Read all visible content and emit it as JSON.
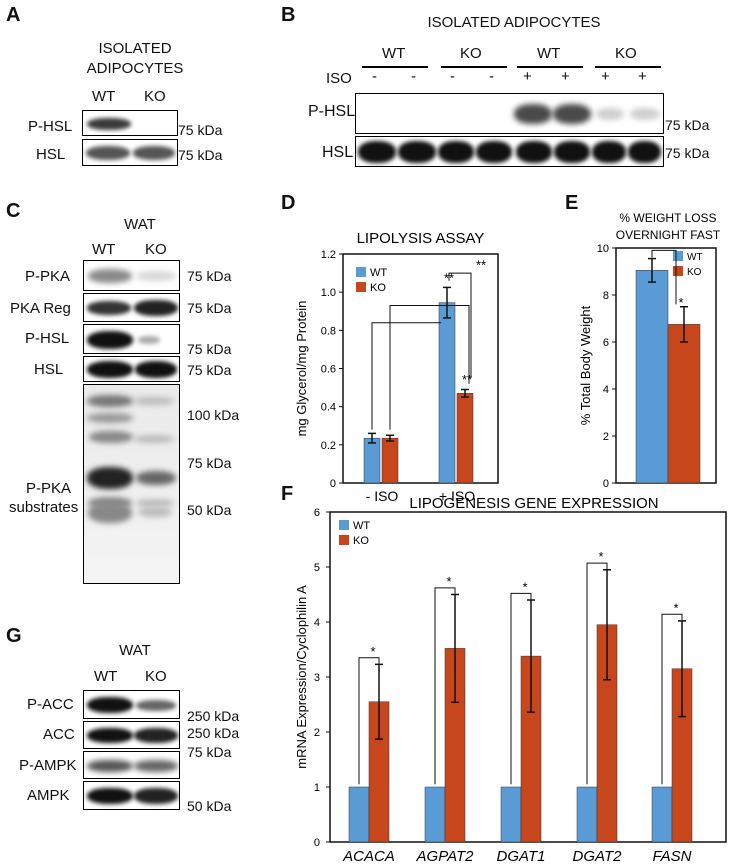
{
  "panelA": {
    "letter": "A",
    "header_line1": "ISOLATED",
    "header_line2": "ADIPOCYTES",
    "col_wt": "WT",
    "col_ko": "KO",
    "rows": [
      "P-HSL",
      "HSL"
    ],
    "markers": [
      "75 kDa",
      "75 kDa"
    ]
  },
  "panelB": {
    "letter": "B",
    "header": "ISOLATED ADIPOCYTES",
    "groups": [
      "WT",
      "KO",
      "WT",
      "KO"
    ],
    "iso_label": "ISO",
    "iso_signs": [
      "-",
      "-",
      "-",
      "-",
      "+",
      "+",
      "+",
      "+"
    ],
    "rows": [
      "P-HSL",
      "HSL"
    ],
    "markers": [
      "75 kDa",
      "75 kDa"
    ]
  },
  "panelC": {
    "letter": "C",
    "header": "WAT",
    "col_wt": "WT",
    "col_ko": "KO",
    "rows": [
      "P-PKA",
      "PKA Reg",
      "P-HSL",
      "HSL"
    ],
    "substrates_line1": "P-PKA",
    "substrates_line2": "substrates",
    "markers": [
      "75 kDa",
      "75 kDa",
      "75 kDa",
      "75 kDa",
      "100 kDa",
      "75 kDa",
      "50 kDa"
    ]
  },
  "panelD": {
    "letter": "D",
    "chart_data": {
      "type": "bar",
      "title": "LIPOLYSIS ASSAY",
      "ylabel": "mg Glycerol/mg Protein",
      "ylim": [
        0,
        1.2
      ],
      "yticks": [
        "0",
        "0.2",
        "0.4",
        "0.6",
        "0.8",
        "1.0",
        "1.2"
      ],
      "categories": [
        "- ISO",
        "+ ISO"
      ],
      "series": [
        {
          "name": "WT",
          "color": "#5b9bd5",
          "values": [
            0.235,
            0.945
          ],
          "errors": [
            0.025,
            0.08
          ]
        },
        {
          "name": "KO",
          "color": "#c8461b",
          "values": [
            0.235,
            0.47
          ],
          "errors": [
            0.015,
            0.02
          ]
        }
      ],
      "annotations": [
        "**",
        "**",
        "**"
      ],
      "legend": "top-left"
    }
  },
  "panelE": {
    "letter": "E",
    "chart_data": {
      "type": "bar",
      "title": "% WEIGHT LOSS OVERNIGHT FAST",
      "title_line1": "% WEIGHT LOSS",
      "title_line2": "OVERNIGHT FAST",
      "ylabel": "% Total Body Weight",
      "ylim": [
        0,
        10
      ],
      "yticks": [
        "0",
        "2",
        "4",
        "6",
        "8",
        "10"
      ],
      "series": [
        {
          "name": "WT",
          "color": "#5b9bd5",
          "values": [
            9.05
          ],
          "errors": [
            0.5
          ]
        },
        {
          "name": "KO",
          "color": "#c8461b",
          "values": [
            6.75
          ],
          "errors": [
            0.75
          ]
        }
      ],
      "annotations": [
        "*"
      ],
      "legend": "top-right"
    }
  },
  "panelF": {
    "letter": "F",
    "chart_data": {
      "type": "bar",
      "title": "LIPOGENESIS GENE EXPRESSION",
      "ylabel": "mRNA Expression/Cyclophilin A",
      "ylim": [
        0,
        6
      ],
      "yticks": [
        "0",
        "1",
        "2",
        "3",
        "4",
        "5",
        "6"
      ],
      "categories": [
        "ACACA",
        "AGPAT2",
        "DGAT1",
        "DGAT2",
        "FASN"
      ],
      "series": [
        {
          "name": "WT",
          "color": "#5b9bd5",
          "values": [
            1,
            1,
            1,
            1,
            1
          ],
          "errors": [
            0,
            0,
            0,
            0,
            0
          ]
        },
        {
          "name": "KO",
          "color": "#c8461b",
          "values": [
            2.55,
            3.52,
            3.38,
            3.95,
            3.15
          ],
          "errors": [
            0.68,
            0.98,
            1.02,
            1.0,
            0.87
          ]
        }
      ],
      "annotations": [
        "*",
        "*",
        "*",
        "*",
        "*"
      ],
      "legend": "top-left"
    }
  },
  "panelG": {
    "letter": "G",
    "header": "WAT",
    "col_wt": "WT",
    "col_ko": "KO",
    "rows": [
      "P-ACC",
      "ACC",
      "P-AMPK",
      "AMPK"
    ],
    "markers": [
      "250 kDa",
      "250 kDa",
      "75 kDa",
      "50 kDa"
    ]
  }
}
